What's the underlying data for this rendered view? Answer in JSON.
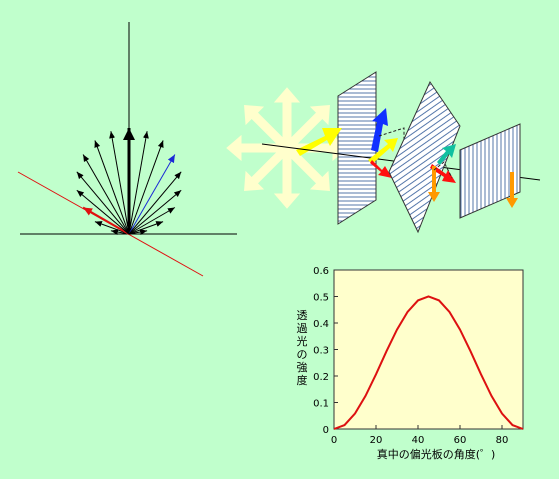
{
  "colors": {
    "background": "#c0ffcc",
    "plot_background": "#ffffcc",
    "curve": "#dd1111",
    "ray_black": "#000000",
    "ray_blue": "#1a2ad6",
    "ray_red": "#e01010",
    "plate_hatch": "#5577aa",
    "light_pale": "#ffffcc",
    "arrow_yellow": "#ffff00",
    "arrow_blue": "#1030ff",
    "arrow_red": "#ff1010",
    "arrow_teal": "#10c0a0",
    "arrow_orange": "#ff9900"
  },
  "fan_diagram": {
    "ray_angles_deg": [
      -80,
      -70,
      -60,
      -50,
      -40,
      -30,
      -20,
      -10,
      0,
      10,
      20,
      30,
      40,
      50,
      60,
      70,
      80
    ],
    "center_angle_deg": 0,
    "blue_angle_deg": 30,
    "red_angle_deg": -60,
    "icons": [
      "vertical-axis",
      "baseline",
      "red-polarizer-line"
    ]
  },
  "polarizer_diagram": {
    "plates": [
      "first-polarizer",
      "middle-polarizer",
      "last-polarizer"
    ],
    "icons": [
      "unpolarized-star",
      "yellow-arrow",
      "blue-arrow",
      "red-arrow",
      "teal-arrow",
      "orange-arrow"
    ]
  },
  "chart_data": {
    "type": "line",
    "title": "",
    "xlabel": "真中の偏光板の角度(゜)",
    "ylabel": "透過光の強度",
    "xlim": [
      0,
      90
    ],
    "ylim": [
      0,
      0.6
    ],
    "x_ticks": [
      "0",
      "20",
      "40",
      "60",
      "80"
    ],
    "y_ticks": [
      "0",
      "0.1",
      "0.2",
      "0.3",
      "0.4",
      "0.5",
      "0.6"
    ],
    "grid": false,
    "series": [
      {
        "x": [
          0,
          5,
          10,
          15,
          20,
          25,
          30,
          35,
          40,
          45,
          50,
          55,
          60,
          65,
          70,
          75,
          80,
          85,
          90
        ],
        "values": [
          0,
          0.0149,
          0.0585,
          0.125,
          0.2066,
          0.2934,
          0.375,
          0.4415,
          0.4851,
          0.5,
          0.4851,
          0.4415,
          0.375,
          0.2934,
          0.2066,
          0.125,
          0.0585,
          0.0149,
          0
        ]
      }
    ]
  }
}
